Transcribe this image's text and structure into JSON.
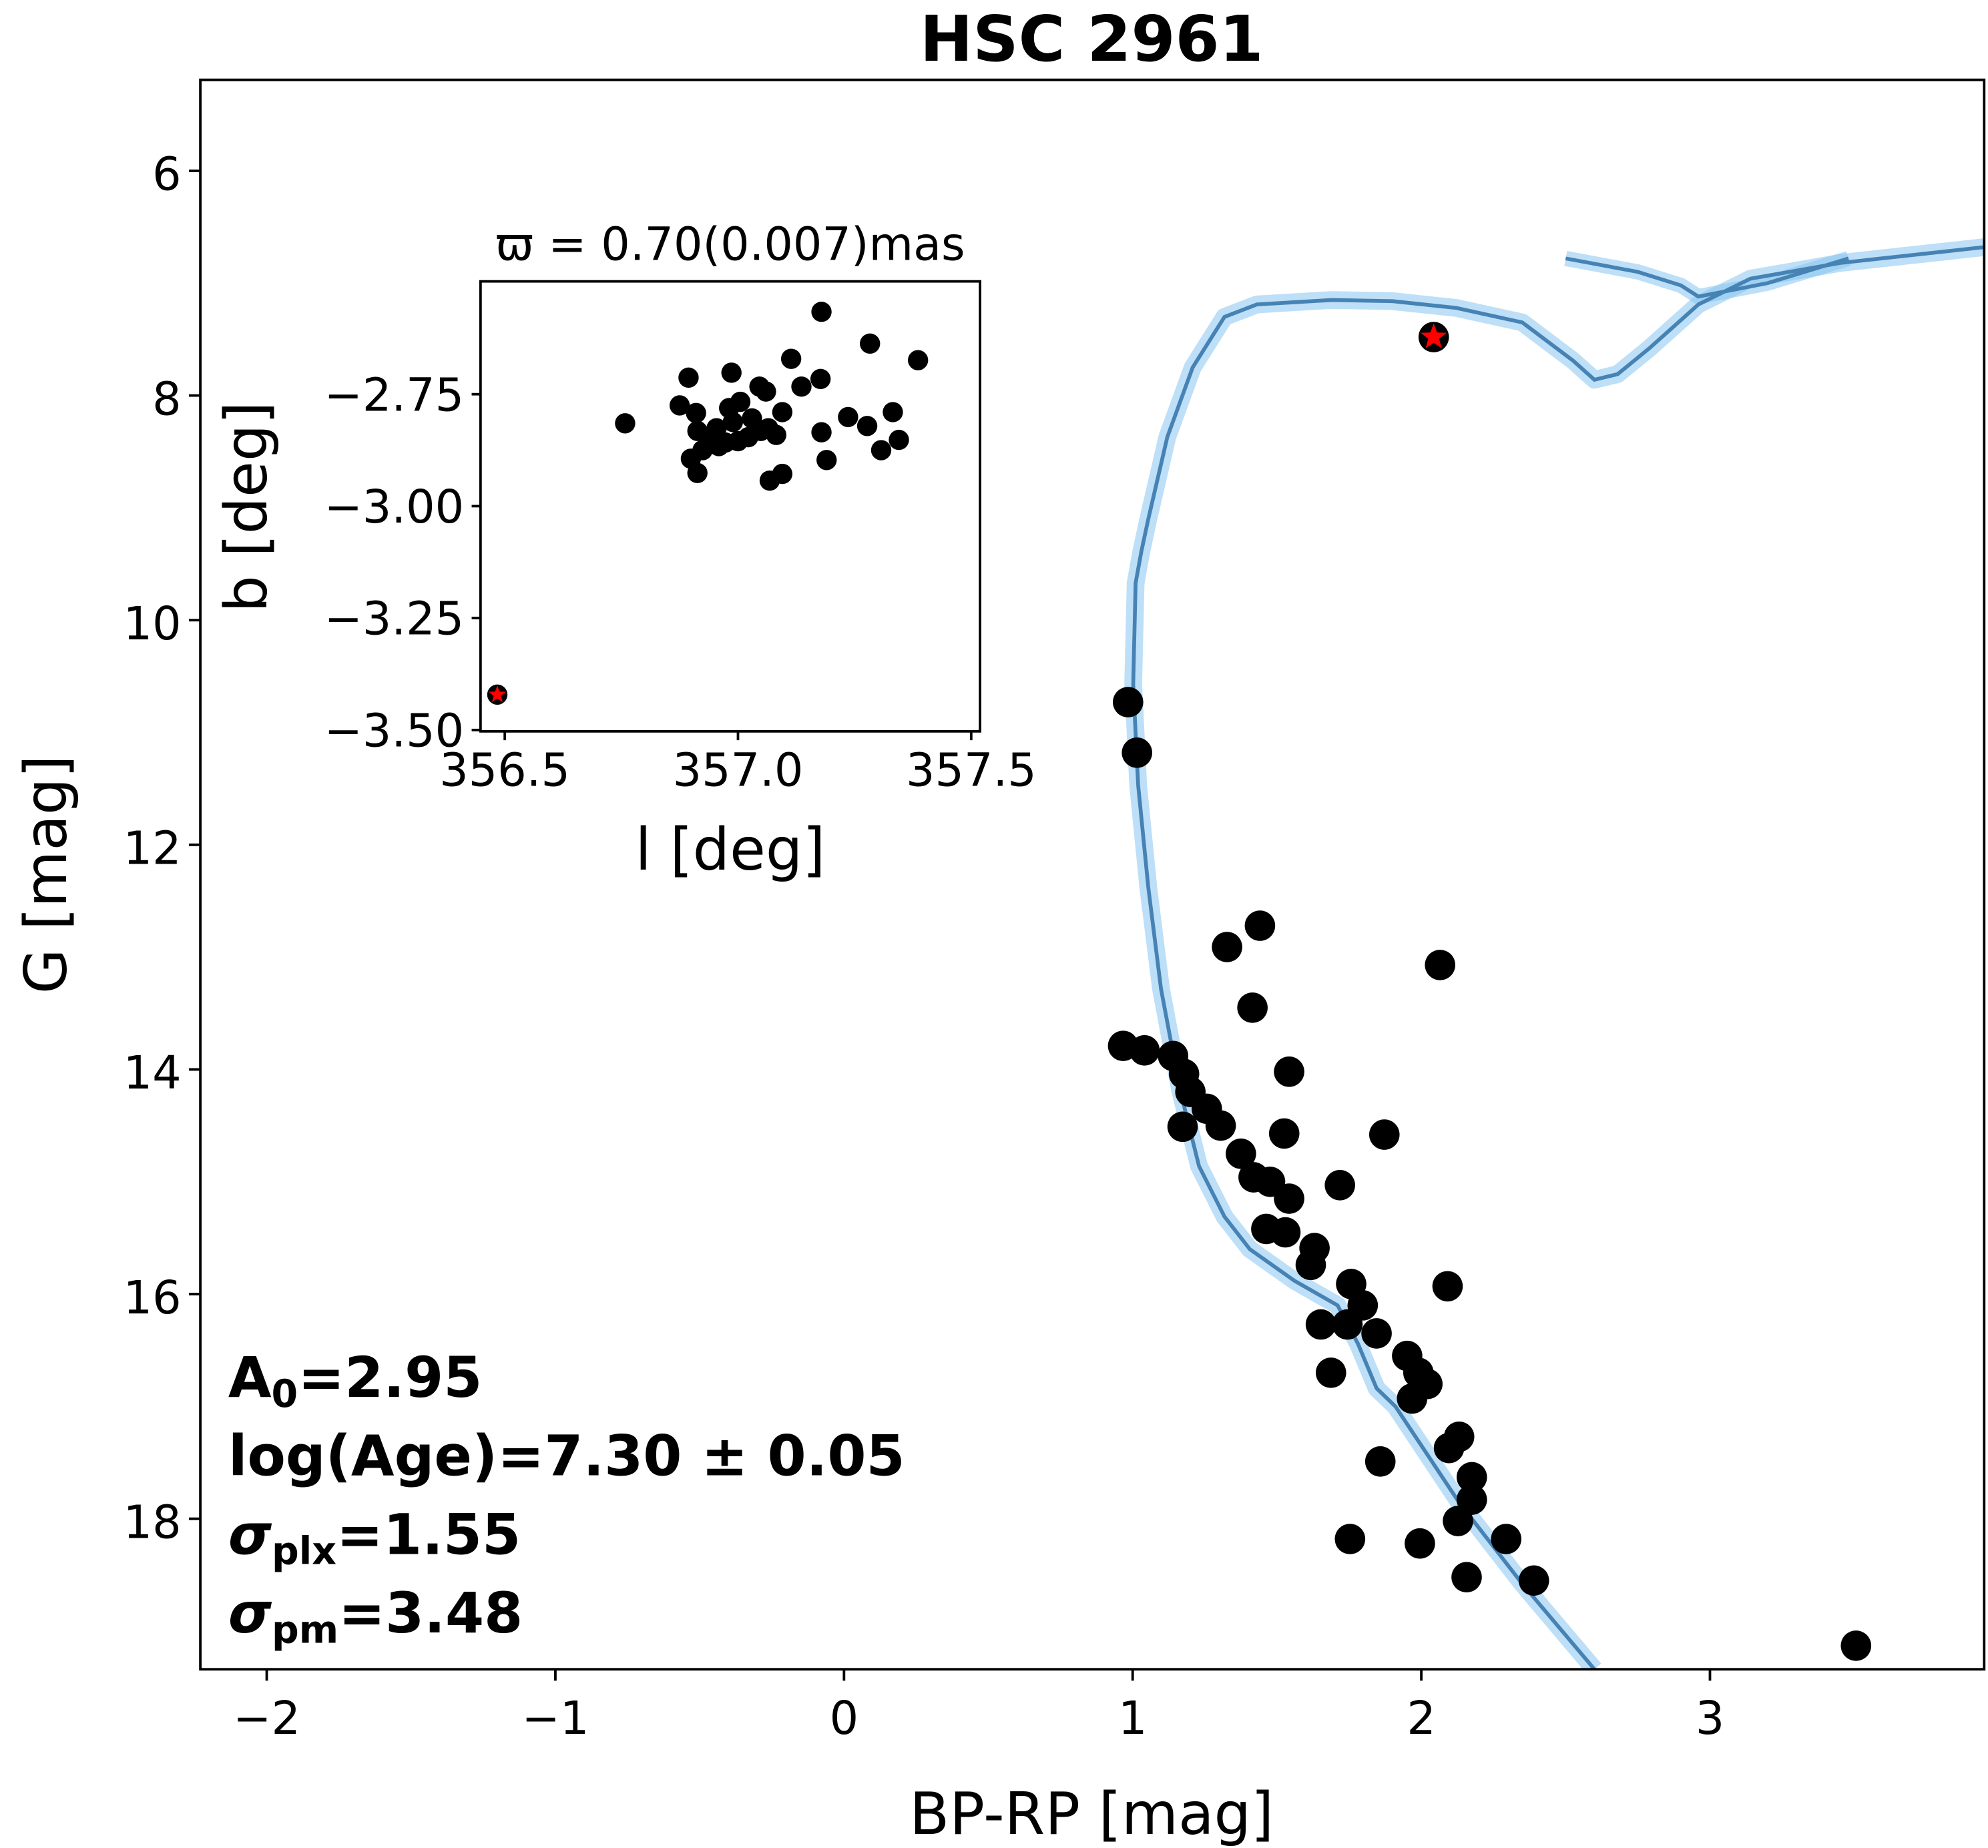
{
  "chart_data": [
    {
      "type": "scatter",
      "title": "HSC 2961",
      "xlabel": "BP-RP [mag]",
      "ylabel": "G [mag]",
      "xlim": [
        -2.23,
        3.95
      ],
      "ylim": [
        19.34,
        5.19
      ],
      "y_inverted": true,
      "xticks": [
        -2,
        -1,
        0,
        1,
        2,
        3
      ],
      "xtick_labels": [
        "−2",
        "−1",
        "0",
        "1",
        "2",
        "3"
      ],
      "yticks": [
        6,
        8,
        10,
        12,
        14,
        16,
        18
      ],
      "ytick_labels": [
        "6",
        "8",
        "10",
        "12",
        "14",
        "16",
        "18"
      ],
      "grid": false,
      "colors": {
        "members": "#000000",
        "highlight": "#ff0000",
        "isochrone": "#4682b4",
        "band": "#87c5f0"
      },
      "members": {
        "x": [
          0.984,
          1.015,
          1.441,
          1.327,
          2.065,
          1.415,
          0.967,
          1.041,
          1.14,
          1.542,
          1.178,
          1.2,
          1.257,
          1.173,
          1.305,
          1.525,
          1.872,
          1.375,
          1.419,
          1.476,
          1.718,
          1.542,
          1.463,
          1.529,
          1.63,
          1.617,
          1.757,
          2.091,
          1.797,
          1.652,
          1.744,
          1.845,
          1.951,
          1.687,
          1.99,
          2.021,
          1.968,
          2.131,
          2.096,
          1.858,
          2.175,
          2.175,
          2.127,
          1.753,
          1.995,
          2.294,
          2.157,
          2.39,
          3.506
        ],
        "y": [
          10.73,
          11.18,
          12.72,
          12.91,
          13.07,
          13.45,
          13.79,
          13.83,
          13.88,
          14.02,
          14.04,
          14.2,
          14.35,
          14.51,
          14.5,
          14.57,
          14.58,
          14.75,
          14.96,
          15.0,
          15.03,
          15.15,
          15.42,
          15.45,
          15.59,
          15.74,
          15.91,
          15.93,
          16.1,
          16.27,
          16.27,
          16.35,
          16.55,
          16.7,
          16.7,
          16.8,
          16.93,
          17.27,
          17.37,
          17.49,
          17.63,
          17.83,
          18.02,
          18.18,
          18.22,
          18.18,
          18.52,
          18.55,
          19.13
        ]
      },
      "highlight_star": {
        "x": 2.043,
        "y": 7.48
      },
      "isochrone": {
        "name": "isochrone",
        "x": [
          2.6,
          2.35,
          2.13,
          1.91,
          1.845,
          1.78,
          1.71,
          1.56,
          1.406,
          1.318,
          1.23,
          1.164,
          1.098,
          1.054,
          1.019,
          1.002,
          1.01,
          1.03,
          1.054,
          1.12,
          1.208,
          1.318,
          1.43,
          1.69,
          1.9,
          2.12,
          2.35,
          2.526,
          2.6,
          2.68,
          2.79,
          2.96,
          3.14,
          3.45,
          3.95
        ],
        "y": [
          19.34,
          18.58,
          17.85,
          17.0,
          16.84,
          16.44,
          16.1,
          15.88,
          15.6,
          15.31,
          14.86,
          14.18,
          13.28,
          12.38,
          11.47,
          10.57,
          9.67,
          9.39,
          9.1,
          8.37,
          7.75,
          7.3,
          7.19,
          7.15,
          7.16,
          7.22,
          7.35,
          7.69,
          7.86,
          7.81,
          7.58,
          7.19,
          6.96,
          6.82,
          6.68
        ]
      },
      "isochrone_branch": {
        "x": [
          2.5,
          2.75,
          2.9,
          2.96,
          3.2,
          3.48
        ],
        "y": [
          6.78,
          6.9,
          7.02,
          7.12,
          7.0,
          6.78
        ]
      },
      "annotations": {
        "a0_label": "A",
        "a0_sub": "0",
        "a0_value": "=2.95",
        "age": "log(Age)=7.30 ± 0.05",
        "plx_sym": "σ",
        "plx_sub": "plx",
        "plx_value": "=1.55",
        "pm_sym": "σ",
        "pm_sub": "pm",
        "pm_value": "=3.48"
      }
    },
    {
      "type": "scatter",
      "title": "ϖ = 0.70(0.007)mas",
      "xlabel": "l [deg]",
      "ylabel": "b [deg]",
      "xlim": [
        356.448,
        357.519
      ],
      "ylim": [
        -3.503,
        -2.498
      ],
      "xticks": [
        356.5,
        357.0,
        357.5
      ],
      "xtick_labels": [
        "356.5",
        "357.0",
        "357.5"
      ],
      "yticks": [
        -2.75,
        -3.0,
        -3.25,
        -3.5
      ],
      "ytick_labels": [
        "−2.75",
        "−3.00",
        "−3.25",
        "−3.50"
      ],
      "members": {
        "x": [
          357.179,
          357.283,
          357.386,
          357.114,
          356.894,
          356.986,
          357.177,
          357.046,
          357.136,
          357.06,
          356.758,
          356.875,
          356.91,
          356.981,
          357.005,
          357.095,
          357.236,
          357.332,
          356.913,
          356.954,
          356.989,
          357.03,
          357.065,
          357.277,
          357.179,
          356.94,
          356.973,
          357.022,
          356.924,
          356.899,
          356.959,
          357.0,
          357.345,
          357.307,
          357.19,
          357.095,
          357.068,
          356.913,
          357.049,
          357.082
        ],
        "y": [
          -2.566,
          -2.637,
          -2.674,
          -2.671,
          -2.713,
          -2.702,
          -2.716,
          -2.733,
          -2.733,
          -2.744,
          -2.815,
          -2.775,
          -2.792,
          -2.781,
          -2.767,
          -2.79,
          -2.801,
          -2.79,
          -2.832,
          -2.826,
          -2.812,
          -2.804,
          -2.826,
          -2.821,
          -2.835,
          -2.849,
          -2.858,
          -2.846,
          -2.875,
          -2.894,
          -2.866,
          -2.855,
          -2.852,
          -2.875,
          -2.897,
          -2.928,
          -2.943,
          -2.926,
          -2.832,
          -2.841
        ]
      },
      "highlight_star": {
        "x": 356.484,
        "y": -3.421
      }
    }
  ]
}
